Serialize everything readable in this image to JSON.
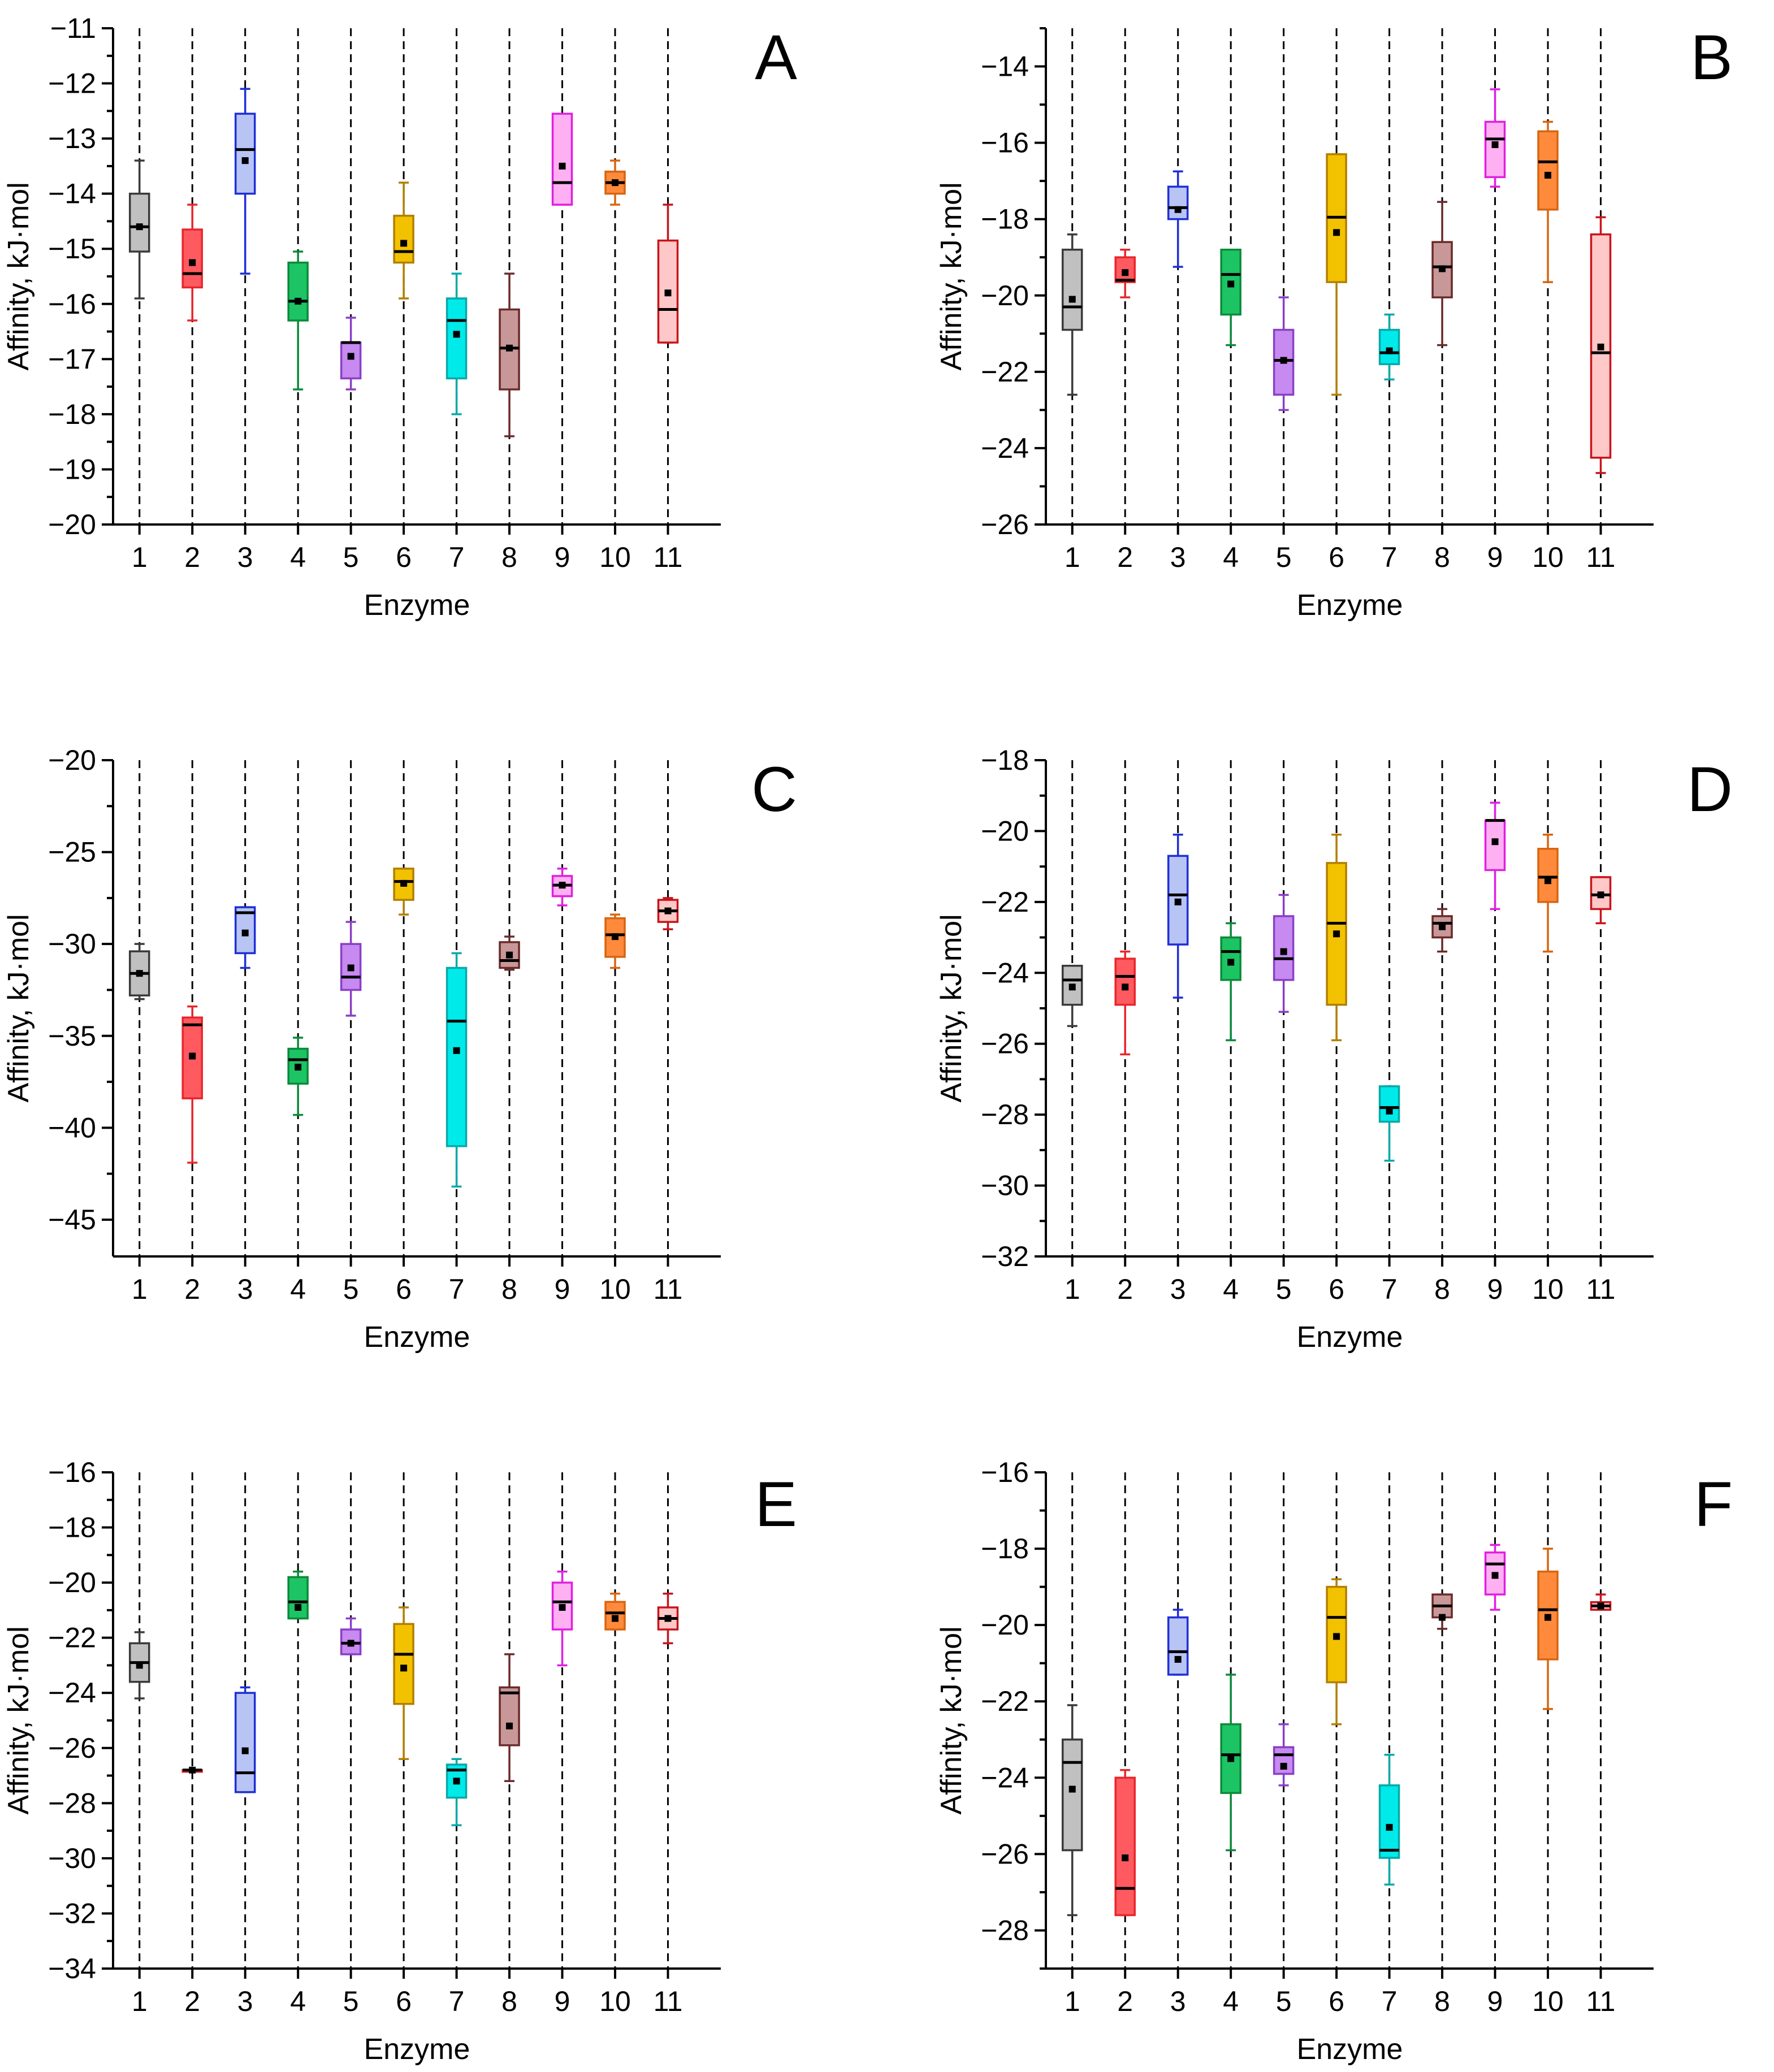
{
  "chart_data": [
    {
      "panel_label": "A",
      "type": "box",
      "xlabel": "Enzyme",
      "ylabel": "Affinity, kJ·mol",
      "ylim": [
        -20,
        -11
      ],
      "yticks": [
        -20,
        -19,
        -18,
        -17,
        -16,
        -15,
        -14,
        -13,
        -12,
        -11
      ],
      "categories": [
        "1",
        "2",
        "3",
        "4",
        "5",
        "6",
        "7",
        "8",
        "9",
        "10",
        "11"
      ],
      "boxes": [
        {
          "min": -15.9,
          "q1": -15.05,
          "median": -14.6,
          "q3": -14.0,
          "max": -13.4,
          "mean": -14.6
        },
        {
          "min": -16.3,
          "q1": -15.7,
          "median": -15.45,
          "q3": -14.65,
          "max": -14.2,
          "mean": -15.25
        },
        {
          "min": -15.45,
          "q1": -14.0,
          "median": -13.2,
          "q3": -12.55,
          "max": -12.1,
          "mean": -13.4
        },
        {
          "min": -17.55,
          "q1": -16.3,
          "median": -15.95,
          "q3": -15.25,
          "max": -15.05,
          "mean": -15.95
        },
        {
          "min": -17.55,
          "q1": -17.35,
          "median": -16.7,
          "q3": -16.7,
          "max": -16.25,
          "mean": -16.95
        },
        {
          "min": -15.9,
          "q1": -15.25,
          "median": -15.05,
          "q3": -14.4,
          "max": -13.8,
          "mean": -14.9
        },
        {
          "min": -18.0,
          "q1": -17.35,
          "median": -16.3,
          "q3": -15.9,
          "max": -15.45,
          "mean": -16.55
        },
        {
          "min": -18.4,
          "q1": -17.55,
          "median": -16.8,
          "q3": -16.1,
          "max": -15.45,
          "mean": -16.8
        },
        {
          "min": -14.2,
          "q1": -14.2,
          "median": -13.8,
          "q3": -12.55,
          "max": -12.55,
          "mean": -13.5
        },
        {
          "min": -14.2,
          "q1": -14.0,
          "median": -13.8,
          "q3": -13.6,
          "max": -13.4,
          "mean": -13.8
        },
        {
          "min": -16.7,
          "q1": -16.7,
          "median": -16.1,
          "q3": -14.85,
          "max": -14.2,
          "mean": -15.8
        }
      ]
    },
    {
      "panel_label": "B",
      "type": "box",
      "xlabel": "Enzyme",
      "ylabel": "Affinity, kJ·mol",
      "ylim": [
        -26,
        -13
      ],
      "yticks": [
        -26,
        -24,
        -22,
        -20,
        -18,
        -16,
        -14
      ],
      "categories": [
        "1",
        "2",
        "3",
        "4",
        "5",
        "6",
        "7",
        "8",
        "9",
        "10",
        "11"
      ],
      "boxes": [
        {
          "min": -22.6,
          "q1": -20.9,
          "median": -20.3,
          "q3": -18.8,
          "max": -18.4,
          "mean": -20.1
        },
        {
          "min": -20.05,
          "q1": -19.65,
          "median": -19.6,
          "q3": -19.0,
          "max": -18.8,
          "mean": -19.4
        },
        {
          "min": -19.25,
          "q1": -18.0,
          "median": -17.7,
          "q3": -17.15,
          "max": -16.75,
          "mean": -17.75
        },
        {
          "min": -21.3,
          "q1": -20.5,
          "median": -19.45,
          "q3": -18.8,
          "max": -18.8,
          "mean": -19.7
        },
        {
          "min": -23.0,
          "q1": -22.6,
          "median": -21.7,
          "q3": -20.9,
          "max": -20.05,
          "mean": -21.7
        },
        {
          "min": -22.6,
          "q1": -19.65,
          "median": -17.95,
          "q3": -16.3,
          "max": -16.3,
          "mean": -18.35
        },
        {
          "min": -22.2,
          "q1": -21.8,
          "median": -21.5,
          "q3": -20.9,
          "max": -20.5,
          "mean": -21.45
        },
        {
          "min": -21.3,
          "q1": -20.05,
          "median": -19.25,
          "q3": -18.6,
          "max": -17.55,
          "mean": -19.3
        },
        {
          "min": -17.15,
          "q1": -16.9,
          "median": -15.9,
          "q3": -15.45,
          "max": -14.6,
          "mean": -16.05
        },
        {
          "min": -19.65,
          "q1": -17.75,
          "median": -16.5,
          "q3": -15.7,
          "max": -15.45,
          "mean": -16.85
        },
        {
          "min": -24.65,
          "q1": -24.25,
          "median": -21.5,
          "q3": -18.4,
          "max": -17.95,
          "mean": -21.35
        }
      ]
    },
    {
      "panel_label": "C",
      "type": "box",
      "xlabel": "Enzyme",
      "ylabel": "Affinity, kJ·mol",
      "ylim": [
        -47,
        -20
      ],
      "yticks": [
        -45,
        -40,
        -35,
        -30,
        -25,
        -20
      ],
      "categories": [
        "1",
        "2",
        "3",
        "4",
        "5",
        "6",
        "7",
        "8",
        "9",
        "10",
        "11"
      ],
      "boxes": [
        {
          "min": -33.0,
          "q1": -32.8,
          "median": -31.6,
          "q3": -30.4,
          "max": -30.0,
          "mean": -31.6
        },
        {
          "min": -41.9,
          "q1": -38.4,
          "median": -34.4,
          "q3": -34.0,
          "max": -33.4,
          "mean": -36.1
        },
        {
          "min": -31.3,
          "q1": -30.5,
          "median": -28.3,
          "q3": -28.0,
          "max": -28.0,
          "mean": -29.4
        },
        {
          "min": -39.3,
          "q1": -37.6,
          "median": -36.3,
          "q3": -35.7,
          "max": -35.1,
          "mean": -36.7
        },
        {
          "min": -33.9,
          "q1": -32.5,
          "median": -31.8,
          "q3": -30.0,
          "max": -28.8,
          "mean": -31.3
        },
        {
          "min": -28.4,
          "q1": -27.6,
          "median": -26.6,
          "q3": -25.9,
          "max": -25.9,
          "mean": -26.7
        },
        {
          "min": -43.2,
          "q1": -41.0,
          "median": -34.2,
          "q3": -31.3,
          "max": -30.5,
          "mean": -35.8
        },
        {
          "min": -31.4,
          "q1": -31.3,
          "median": -30.9,
          "q3": -29.9,
          "max": -29.6,
          "mean": -30.6
        },
        {
          "min": -27.9,
          "q1": -27.4,
          "median": -26.8,
          "q3": -26.3,
          "max": -25.9,
          "mean": -26.8
        },
        {
          "min": -31.3,
          "q1": -30.7,
          "median": -29.5,
          "q3": -28.6,
          "max": -28.4,
          "mean": -29.6
        },
        {
          "min": -29.2,
          "q1": -28.8,
          "median": -28.2,
          "q3": -27.6,
          "max": -27.5,
          "mean": -28.2
        }
      ]
    },
    {
      "panel_label": "D",
      "type": "box",
      "xlabel": "Enzyme",
      "ylabel": "Affinity, kJ·mol",
      "ylim": [
        -32,
        -18
      ],
      "yticks": [
        -32,
        -30,
        -28,
        -26,
        -24,
        -22,
        -20,
        -18
      ],
      "categories": [
        "1",
        "2",
        "3",
        "4",
        "5",
        "6",
        "7",
        "8",
        "9",
        "10",
        "11"
      ],
      "boxes": [
        {
          "min": -25.5,
          "q1": -24.9,
          "median": -24.2,
          "q3": -23.8,
          "max": -23.8,
          "mean": -24.4
        },
        {
          "min": -26.3,
          "q1": -24.9,
          "median": -24.1,
          "q3": -23.6,
          "max": -23.4,
          "mean": -24.4
        },
        {
          "min": -24.7,
          "q1": -23.2,
          "median": -21.8,
          "q3": -20.7,
          "max": -20.1,
          "mean": -22.0
        },
        {
          "min": -25.9,
          "q1": -24.2,
          "median": -23.4,
          "q3": -23.0,
          "max": -22.6,
          "mean": -23.7
        },
        {
          "min": -25.1,
          "q1": -24.2,
          "median": -23.6,
          "q3": -22.4,
          "max": -21.8,
          "mean": -23.4
        },
        {
          "min": -25.9,
          "q1": -24.9,
          "median": -22.6,
          "q3": -20.9,
          "max": -20.1,
          "mean": -22.9
        },
        {
          "min": -29.3,
          "q1": -28.2,
          "median": -27.8,
          "q3": -27.2,
          "max": -27.2,
          "mean": -27.9
        },
        {
          "min": -23.4,
          "q1": -23.0,
          "median": -22.6,
          "q3": -22.4,
          "max": -22.2,
          "mean": -22.7
        },
        {
          "min": -22.2,
          "q1": -21.1,
          "median": -19.7,
          "q3": -19.7,
          "max": -19.2,
          "mean": -20.3
        },
        {
          "min": -23.4,
          "q1": -22.0,
          "median": -21.3,
          "q3": -20.5,
          "max": -20.1,
          "mean": -21.4
        },
        {
          "min": -22.6,
          "q1": -22.2,
          "median": -21.8,
          "q3": -21.3,
          "max": -21.3,
          "mean": -21.8
        }
      ]
    },
    {
      "panel_label": "E",
      "type": "box",
      "xlabel": "Enzyme",
      "ylabel": "Affinity, kJ·mol",
      "ylim": [
        -34,
        -16
      ],
      "yticks": [
        -34,
        -32,
        -30,
        -28,
        -26,
        -24,
        -22,
        -20,
        -18,
        -16
      ],
      "categories": [
        "1",
        "2",
        "3",
        "4",
        "5",
        "6",
        "7",
        "8",
        "9",
        "10",
        "11"
      ],
      "boxes": [
        {
          "min": -24.2,
          "q1": -23.6,
          "median": -22.9,
          "q3": -22.2,
          "max": -21.8,
          "mean": -23.0
        },
        {
          "min": -26.8,
          "q1": -26.8,
          "median": -26.8,
          "q3": -26.8,
          "max": -26.8,
          "mean": -26.8
        },
        {
          "min": -27.6,
          "q1": -27.6,
          "median": -26.9,
          "q3": -24.0,
          "max": -23.8,
          "mean": -26.1
        },
        {
          "min": -21.3,
          "q1": -21.3,
          "median": -20.7,
          "q3": -19.8,
          "max": -19.6,
          "mean": -20.9
        },
        {
          "min": -22.6,
          "q1": -22.6,
          "median": -22.2,
          "q3": -21.7,
          "max": -21.3,
          "mean": -22.2
        },
        {
          "min": -26.4,
          "q1": -24.4,
          "median": -22.6,
          "q3": -21.5,
          "max": -20.9,
          "mean": -23.1
        },
        {
          "min": -28.8,
          "q1": -27.8,
          "median": -26.8,
          "q3": -26.6,
          "max": -26.4,
          "mean": -27.2
        },
        {
          "min": -27.2,
          "q1": -25.9,
          "median": -24.0,
          "q3": -23.8,
          "max": -22.6,
          "mean": -25.2
        },
        {
          "min": -23.0,
          "q1": -21.7,
          "median": -20.7,
          "q3": -20.0,
          "max": -19.6,
          "mean": -20.9
        },
        {
          "min": -21.7,
          "q1": -21.7,
          "median": -21.1,
          "q3": -20.7,
          "max": -20.4,
          "mean": -21.3
        },
        {
          "min": -22.2,
          "q1": -21.7,
          "median": -21.3,
          "q3": -20.9,
          "max": -20.4,
          "mean": -21.3
        }
      ]
    },
    {
      "panel_label": "F",
      "type": "box",
      "xlabel": "Enzyme",
      "ylabel": "Affinity, kJ·mol",
      "ylim": [
        -29,
        -16
      ],
      "yticks": [
        -28,
        -26,
        -24,
        -22,
        -20,
        -18,
        -16
      ],
      "categories": [
        "1",
        "2",
        "3",
        "4",
        "5",
        "6",
        "7",
        "8",
        "9",
        "10",
        "11"
      ],
      "boxes": [
        {
          "min": -27.6,
          "q1": -25.9,
          "median": -23.6,
          "q3": -23.0,
          "max": -22.1,
          "mean": -24.3
        },
        {
          "min": -27.6,
          "q1": -27.6,
          "median": -26.9,
          "q3": -24.0,
          "max": -23.8,
          "mean": -26.1
        },
        {
          "min": -21.3,
          "q1": -21.3,
          "median": -20.7,
          "q3": -19.8,
          "max": -19.6,
          "mean": -20.9
        },
        {
          "min": -25.9,
          "q1": -24.4,
          "median": -23.4,
          "q3": -22.6,
          "max": -21.3,
          "mean": -23.5
        },
        {
          "min": -24.2,
          "q1": -23.9,
          "median": -23.4,
          "q3": -23.2,
          "max": -22.6,
          "mean": -23.7
        },
        {
          "min": -22.6,
          "q1": -21.5,
          "median": -19.8,
          "q3": -19.0,
          "max": -18.8,
          "mean": -20.3
        },
        {
          "min": -26.8,
          "q1": -26.1,
          "median": -25.9,
          "q3": -24.2,
          "max": -23.4,
          "mean": -25.3
        },
        {
          "min": -20.1,
          "q1": -19.8,
          "median": -19.5,
          "q3": -19.2,
          "max": -19.2,
          "mean": -19.8
        },
        {
          "min": -19.6,
          "q1": -19.2,
          "median": -18.4,
          "q3": -18.1,
          "max": -17.9,
          "mean": -18.7
        },
        {
          "min": -22.2,
          "q1": -20.9,
          "median": -19.6,
          "q3": -18.6,
          "max": -18.0,
          "mean": -19.8
        },
        {
          "min": -19.6,
          "q1": -19.6,
          "median": -19.5,
          "q3": -19.4,
          "max": -19.2,
          "mean": -19.5
        }
      ]
    }
  ],
  "series_colors": {
    "edge": [
      "#3a3a3a",
      "#e8262b",
      "#1f2fd6",
      "#0c8a3a",
      "#8a3fc7",
      "#b27f00",
      "#0aa8a8",
      "#6b2a2a",
      "#e020e0",
      "#d86510",
      "#c8141b"
    ],
    "fill": [
      "#c0c0c0",
      "#ff5a5f",
      "#b7c4f4",
      "#1cc464",
      "#c68af0",
      "#f2c200",
      "#00eaea",
      "#c89898",
      "#ffb0f2",
      "#ff8a3c",
      "#ffc8c8"
    ]
  }
}
